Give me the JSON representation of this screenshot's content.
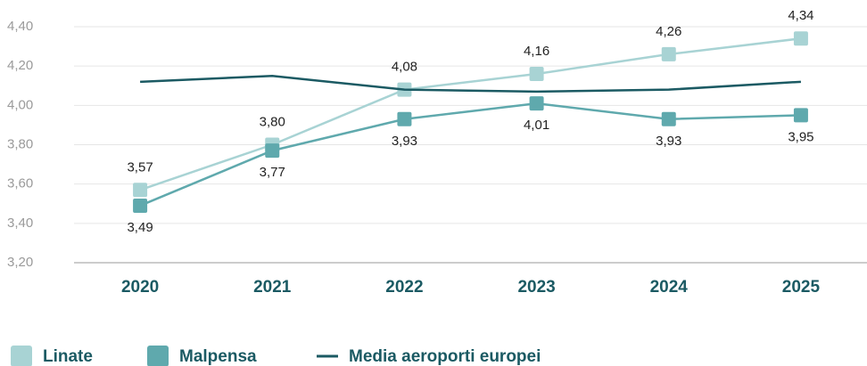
{
  "chart_data": {
    "type": "line",
    "categories": [
      "2020",
      "2021",
      "2022",
      "2023",
      "2024",
      "2025"
    ],
    "series": [
      {
        "name": "Linate",
        "color": "#a8d3d4",
        "marker": "square",
        "label_position": "above",
        "values": [
          3.57,
          3.8,
          4.08,
          4.16,
          4.26,
          4.34
        ],
        "value_labels": [
          "3,57",
          "3,80",
          "4,08",
          "4,16",
          "4,26",
          "4,34"
        ]
      },
      {
        "name": "Malpensa",
        "color": "#5fa9ad",
        "marker": "square",
        "label_position": "below",
        "values": [
          3.49,
          3.77,
          3.93,
          4.01,
          3.93,
          3.95
        ],
        "value_labels": [
          "3,49",
          "3,77",
          "3,93",
          "4,01",
          "3,93",
          "3,95"
        ]
      },
      {
        "name": "Media aeroporti europei",
        "color": "#1b5a63",
        "marker": "none",
        "values": [
          4.12,
          4.15,
          4.08,
          4.07,
          4.08,
          4.12
        ]
      }
    ],
    "ylim": [
      3.2,
      4.4
    ],
    "yticks": [
      {
        "value": 3.2,
        "label": "3,20"
      },
      {
        "value": 3.4,
        "label": "3,40"
      },
      {
        "value": 3.6,
        "label": "3,60"
      },
      {
        "value": 3.8,
        "label": "3,80"
      },
      {
        "value": 4.0,
        "label": "4,00"
      },
      {
        "value": 4.2,
        "label": "4,20"
      },
      {
        "value": 4.4,
        "label": "4,40"
      }
    ],
    "grid": true,
    "legend": "bottom-left"
  }
}
